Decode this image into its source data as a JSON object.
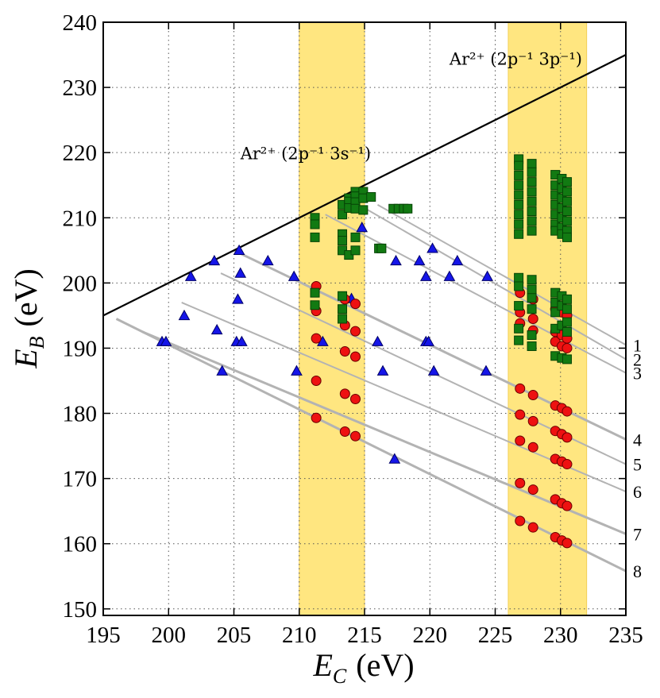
{
  "chart_data": {
    "type": "scatter",
    "xlabel_main": "E",
    "xlabel_sub": "C",
    "xlabel_unit": "(eV)",
    "ylabel_main": "E",
    "ylabel_sub": "B",
    "ylabel_unit": "(eV)",
    "xlim": [
      195,
      235
    ],
    "ylim": [
      149,
      240
    ],
    "xticks": [
      "195",
      "200",
      "205",
      "210",
      "215",
      "220",
      "225",
      "230",
      "235"
    ],
    "yticks": [
      "150",
      "160",
      "170",
      "180",
      "190",
      "200",
      "210",
      "220",
      "230",
      "240"
    ],
    "grid": true,
    "bands": [
      {
        "x0": 210,
        "x1": 215,
        "color": "#ffe680"
      },
      {
        "x0": 226,
        "x1": 232,
        "color": "#ffe680"
      }
    ],
    "annotations": [
      {
        "name": "ar-3s-label",
        "text": "Ar²⁺ (2p⁻¹ 3s⁻¹)",
        "x": 205.5,
        "y": 219
      },
      {
        "name": "ar-3p-label",
        "text": "Ar²⁺ (2p⁻¹ 3p⁻¹)",
        "x": 221.5,
        "y": 233.5
      }
    ],
    "diagonal": {
      "x1": 195,
      "y1": 195,
      "x2": 235,
      "y2": 235,
      "color": "#000000"
    },
    "lines": [
      {
        "label": "1",
        "x1": 216,
        "y1": 212,
        "x2": 235,
        "y2": 190.5,
        "heavy": false
      },
      {
        "label": "2",
        "x1": 215,
        "y1": 211.5,
        "x2": 235,
        "y2": 188.3,
        "heavy": false
      },
      {
        "label": "3",
        "x1": 212,
        "y1": 210.5,
        "x2": 235,
        "y2": 186.2,
        "heavy": false
      },
      {
        "label": "4",
        "x1": 205,
        "y1": 205,
        "x2": 235,
        "y2": 176,
        "heavy": true
      },
      {
        "label": "5",
        "x1": 204,
        "y1": 201.5,
        "x2": 235,
        "y2": 172.2,
        "heavy": false
      },
      {
        "label": "6",
        "x1": 201,
        "y1": 197,
        "x2": 235,
        "y2": 168,
        "heavy": false
      },
      {
        "label": "7",
        "x1": 198,
        "y1": 192.5,
        "x2": 235,
        "y2": 161.5,
        "heavy": true
      },
      {
        "label": "8",
        "x1": 196,
        "y1": 194.5,
        "x2": 235,
        "y2": 155.8,
        "heavy": true
      }
    ],
    "series": [
      {
        "name": "triangles",
        "marker": "triangle",
        "color": "#1515e8",
        "points": [
          [
            199.5,
            191
          ],
          [
            199.8,
            191
          ],
          [
            201.2,
            195
          ],
          [
            201.7,
            201
          ],
          [
            203.5,
            203.4
          ],
          [
            203.7,
            192.8
          ],
          [
            204.1,
            186.5
          ],
          [
            205.2,
            191
          ],
          [
            205.3,
            197.5
          ],
          [
            205.4,
            205
          ],
          [
            205.5,
            201.5
          ],
          [
            205.6,
            191
          ],
          [
            207.6,
            203.4
          ],
          [
            209.6,
            201
          ],
          [
            209.8,
            186.5
          ],
          [
            211.8,
            191
          ],
          [
            214,
            197.6
          ],
          [
            214.8,
            208.5
          ],
          [
            216,
            191
          ],
          [
            216.4,
            186.5
          ],
          [
            217.3,
            173
          ],
          [
            217.4,
            203.4
          ],
          [
            219.2,
            203.4
          ],
          [
            219.7,
            201
          ],
          [
            219.7,
            191
          ],
          [
            219.9,
            191
          ],
          [
            220.2,
            205.3
          ],
          [
            220.3,
            186.5
          ],
          [
            221.5,
            201
          ],
          [
            222.1,
            203.4
          ],
          [
            224.3,
            186.5
          ],
          [
            224.4,
            201
          ]
        ]
      },
      {
        "name": "circles",
        "marker": "circle",
        "color": "#ee1111",
        "points": [
          [
            211.3,
            199.5
          ],
          [
            211.3,
            195.7
          ],
          [
            211.3,
            191.5
          ],
          [
            211.3,
            185
          ],
          [
            211.3,
            179.3
          ],
          [
            213.5,
            197.5
          ],
          [
            213.5,
            193.5
          ],
          [
            213.5,
            189.5
          ],
          [
            213.5,
            183
          ],
          [
            213.5,
            177.2
          ],
          [
            214.3,
            196.8
          ],
          [
            214.3,
            192.6
          ],
          [
            214.3,
            188.7
          ],
          [
            214.3,
            182.2
          ],
          [
            214.3,
            176.5
          ],
          [
            226.9,
            198.5
          ],
          [
            226.9,
            195.5
          ],
          [
            226.9,
            193.8
          ],
          [
            226.9,
            183.8
          ],
          [
            226.9,
            179.8
          ],
          [
            226.9,
            175.8
          ],
          [
            226.9,
            169.3
          ],
          [
            226.9,
            163.5
          ],
          [
            227.9,
            197.5
          ],
          [
            227.9,
            194.5
          ],
          [
            227.9,
            192.7
          ],
          [
            227.9,
            182.8
          ],
          [
            227.9,
            178.8
          ],
          [
            227.9,
            174.8
          ],
          [
            227.9,
            168.3
          ],
          [
            227.9,
            162.5
          ],
          [
            229.6,
            196
          ],
          [
            229.6,
            192.5
          ],
          [
            229.6,
            191
          ],
          [
            229.6,
            181.2
          ],
          [
            229.6,
            177.3
          ],
          [
            229.6,
            173
          ],
          [
            229.6,
            166.8
          ],
          [
            229.6,
            161
          ],
          [
            230.1,
            195.5
          ],
          [
            230.1,
            192
          ],
          [
            230.1,
            190.3
          ],
          [
            230.1,
            180.8
          ],
          [
            230.1,
            176.8
          ],
          [
            230.1,
            172.6
          ],
          [
            230.1,
            166.2
          ],
          [
            230.1,
            160.5
          ],
          [
            230.5,
            195
          ],
          [
            230.5,
            191.5
          ],
          [
            230.5,
            190
          ],
          [
            230.5,
            180.3
          ],
          [
            230.5,
            176.3
          ],
          [
            230.5,
            172.2
          ],
          [
            230.5,
            165.8
          ],
          [
            230.5,
            160.1
          ]
        ]
      },
      {
        "name": "squares",
        "marker": "square",
        "color": "#127a12",
        "points": [
          [
            211.2,
            210
          ],
          [
            211.2,
            209
          ],
          [
            211.2,
            207
          ],
          [
            211.2,
            198.5
          ],
          [
            211.2,
            196.6
          ],
          [
            213.3,
            212
          ],
          [
            213.3,
            210.5
          ],
          [
            213.3,
            207.5
          ],
          [
            213.3,
            206.5
          ],
          [
            213.3,
            205
          ],
          [
            213.3,
            198
          ],
          [
            213.3,
            196
          ],
          [
            213.3,
            194.5
          ],
          [
            213.8,
            213
          ],
          [
            213.8,
            212.5
          ],
          [
            213.8,
            211.5
          ],
          [
            213.8,
            204.3
          ],
          [
            214.3,
            214
          ],
          [
            214.3,
            213.3
          ],
          [
            214.3,
            212.4
          ],
          [
            214.3,
            211.4
          ],
          [
            214.3,
            207
          ],
          [
            214.3,
            205
          ],
          [
            214.9,
            214
          ],
          [
            214.9,
            213
          ],
          [
            214.9,
            211.2
          ],
          [
            215.5,
            213.2
          ],
          [
            216.1,
            205.3
          ],
          [
            216.3,
            205.3
          ],
          [
            217.2,
            211.4
          ],
          [
            217.6,
            211.4
          ],
          [
            218,
            211.4
          ],
          [
            218.3,
            211.4
          ],
          [
            226.8,
            219
          ],
          [
            226.8,
            218
          ],
          [
            226.8,
            216.5
          ],
          [
            226.8,
            215
          ],
          [
            226.8,
            213.5
          ],
          [
            226.8,
            212
          ],
          [
            226.8,
            210.5
          ],
          [
            226.8,
            209
          ],
          [
            226.8,
            207.5
          ],
          [
            226.8,
            200.8
          ],
          [
            226.8,
            199.5
          ],
          [
            226.8,
            196.5
          ],
          [
            226.8,
            193
          ],
          [
            226.8,
            191.2
          ],
          [
            227.8,
            218.3
          ],
          [
            227.8,
            217
          ],
          [
            227.8,
            215.5
          ],
          [
            227.8,
            214
          ],
          [
            227.8,
            212.5
          ],
          [
            227.8,
            211
          ],
          [
            227.8,
            209.5
          ],
          [
            227.8,
            208
          ],
          [
            227.8,
            200.5
          ],
          [
            227.8,
            199
          ],
          [
            227.8,
            197.7
          ],
          [
            227.8,
            196
          ],
          [
            227.8,
            192
          ],
          [
            227.8,
            190.3
          ],
          [
            229.6,
            216.6
          ],
          [
            229.6,
            215
          ],
          [
            229.6,
            213.5
          ],
          [
            229.6,
            212
          ],
          [
            229.6,
            210.5
          ],
          [
            229.6,
            209
          ],
          [
            229.6,
            208
          ],
          [
            229.6,
            198.5
          ],
          [
            229.6,
            197
          ],
          [
            229.6,
            195.5
          ],
          [
            229.6,
            193
          ],
          [
            229.6,
            188.8
          ],
          [
            230.1,
            216
          ],
          [
            230.1,
            214.5
          ],
          [
            230.1,
            213
          ],
          [
            230.1,
            211.5
          ],
          [
            230.1,
            210
          ],
          [
            230.1,
            208.5
          ],
          [
            230.1,
            207.5
          ],
          [
            230.1,
            198
          ],
          [
            230.1,
            196.5
          ],
          [
            230.1,
            193.5
          ],
          [
            230.1,
            188.5
          ],
          [
            230.5,
            215.5
          ],
          [
            230.5,
            214
          ],
          [
            230.5,
            212.5
          ],
          [
            230.5,
            211
          ],
          [
            230.5,
            209.5
          ],
          [
            230.5,
            208
          ],
          [
            230.5,
            207
          ],
          [
            230.5,
            197.5
          ],
          [
            230.5,
            196
          ],
          [
            230.5,
            194
          ],
          [
            230.5,
            192.5
          ],
          [
            230.5,
            188.3
          ]
        ]
      }
    ]
  }
}
